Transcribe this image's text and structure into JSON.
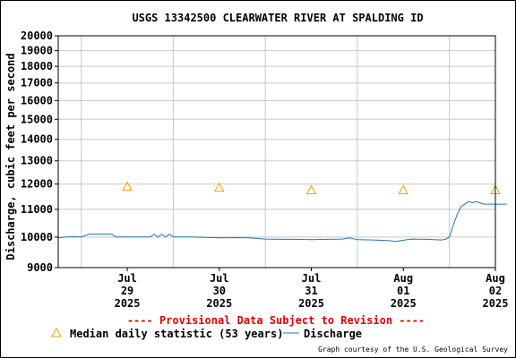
{
  "chart_data": {
    "type": "line",
    "title": "USGS 13342500 CLEARWATER RIVER AT SPALDING ID",
    "ylabel": "Discharge, cubic feet per second",
    "xlabel": "",
    "ylim": [
      9000,
      20000
    ],
    "y_scale": "log",
    "y_ticks": [
      9000,
      10000,
      11000,
      12000,
      13000,
      14000,
      15000,
      16000,
      17000,
      18000,
      19000,
      20000
    ],
    "y_tick_labels": [
      "9000",
      "10000",
      "11000",
      "12000",
      "13000",
      "14000",
      "15000",
      "16000",
      "17000",
      "18000",
      "19000",
      "20000"
    ],
    "xlim": [
      "2025-07-28 18:00",
      "2025-08-02 12:00"
    ],
    "x_ticks": [
      {
        "date": "2025-07-29 12:00",
        "lines": [
          "Jul",
          "29",
          "2025"
        ]
      },
      {
        "date": "2025-07-30 12:00",
        "lines": [
          "Jul",
          "30",
          "2025"
        ]
      },
      {
        "date": "2025-07-31 12:00",
        "lines": [
          "Jul",
          "31",
          "2025"
        ]
      },
      {
        "date": "2025-08-01 12:00",
        "lines": [
          "Aug",
          "01",
          "2025"
        ]
      },
      {
        "date": "2025-08-02 12:00",
        "lines": [
          "Aug",
          "02",
          "2025"
        ]
      }
    ],
    "grid": true,
    "series": [
      {
        "name": "Discharge",
        "color": "#1f77b4",
        "points": [
          [
            "2025-07-28 18:00",
            9970
          ],
          [
            "2025-07-28 20:00",
            10000
          ],
          [
            "2025-07-28 22:00",
            10010
          ],
          [
            "2025-07-29 00:00",
            10000
          ],
          [
            "2025-07-29 02:00",
            10100
          ],
          [
            "2025-07-29 04:00",
            10100
          ],
          [
            "2025-07-29 06:00",
            10100
          ],
          [
            "2025-07-29 08:00",
            10100
          ],
          [
            "2025-07-29 09:00",
            10000
          ],
          [
            "2025-07-29 12:00",
            10000
          ],
          [
            "2025-07-29 16:00",
            10000
          ],
          [
            "2025-07-29 18:00",
            10000
          ],
          [
            "2025-07-29 19:00",
            10100
          ],
          [
            "2025-07-29 20:00",
            10000
          ],
          [
            "2025-07-29 21:00",
            10100
          ],
          [
            "2025-07-29 22:00",
            10000
          ],
          [
            "2025-07-29 23:00",
            10100
          ],
          [
            "2025-07-30 00:00",
            10000
          ],
          [
            "2025-07-30 04:00",
            10000
          ],
          [
            "2025-07-30 08:00",
            9990
          ],
          [
            "2025-07-30 12:00",
            9970
          ],
          [
            "2025-07-30 16:00",
            9980
          ],
          [
            "2025-07-30 20:00",
            9970
          ],
          [
            "2025-07-31 00:00",
            9930
          ],
          [
            "2025-07-31 04:00",
            9920
          ],
          [
            "2025-07-31 08:00",
            9920
          ],
          [
            "2025-07-31 12:00",
            9910
          ],
          [
            "2025-07-31 16:00",
            9920
          ],
          [
            "2025-07-31 20:00",
            9930
          ],
          [
            "2025-07-31 22:00",
            9970
          ],
          [
            "2025-08-01 00:00",
            9910
          ],
          [
            "2025-08-01 04:00",
            9900
          ],
          [
            "2025-08-01 08:00",
            9880
          ],
          [
            "2025-08-01 10:00",
            9850
          ],
          [
            "2025-08-01 14:00",
            9930
          ],
          [
            "2025-08-01 18:00",
            9920
          ],
          [
            "2025-08-01 22:00",
            9900
          ],
          [
            "2025-08-01 23:00",
            9920
          ],
          [
            "2025-08-02 00:00",
            10000
          ],
          [
            "2025-08-02 01:00",
            10400
          ],
          [
            "2025-08-02 02:00",
            10800
          ],
          [
            "2025-08-02 03:00",
            11100
          ],
          [
            "2025-08-02 04:00",
            11200
          ],
          [
            "2025-08-02 05:00",
            11300
          ],
          [
            "2025-08-02 06:00",
            11250
          ],
          [
            "2025-08-02 07:00",
            11300
          ],
          [
            "2025-08-02 08:00",
            11250
          ],
          [
            "2025-08-02 09:00",
            11200
          ],
          [
            "2025-08-02 12:00",
            11200
          ],
          [
            "2025-08-02 15:00",
            11200
          ]
        ]
      },
      {
        "name": "Median daily statistic (53 years)",
        "marker": "triangle",
        "color": "#f0a000",
        "points": [
          [
            "2025-07-29 12:00",
            11900
          ],
          [
            "2025-07-30 12:00",
            11850
          ],
          [
            "2025-07-31 12:00",
            11750
          ],
          [
            "2025-08-01 12:00",
            11750
          ],
          [
            "2025-08-02 12:00",
            11750
          ]
        ]
      }
    ],
    "legend": [
      {
        "label": "Median daily statistic (53 years)",
        "marker": "triangle"
      },
      {
        "label": "Discharge",
        "marker": "line"
      }
    ],
    "legend_placement": "bottom",
    "annotation": "---- Provisional Data Subject to Revision ----",
    "credit": "Graph courtesy of the U.S. Geological Survey"
  }
}
